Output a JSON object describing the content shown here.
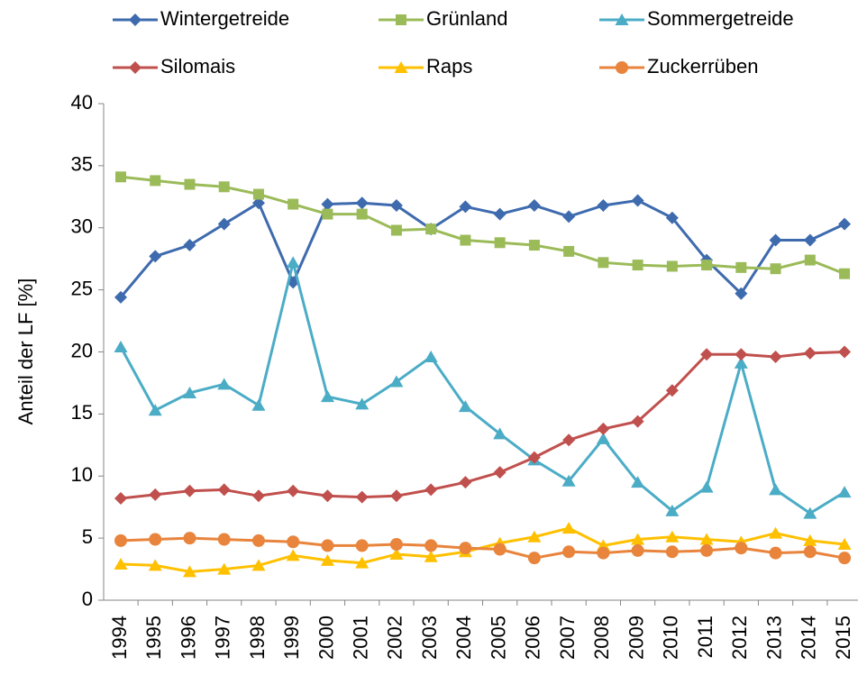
{
  "chart_data": {
    "type": "line",
    "y_label": "Anteil der LF [%]",
    "categories": [
      "1994",
      "1995",
      "1996",
      "1997",
      "1998",
      "1999",
      "2000",
      "2001",
      "2002",
      "2003",
      "2004",
      "2005",
      "2006",
      "2007",
      "2008",
      "2009",
      "2010",
      "2011",
      "2012",
      "2013",
      "2014",
      "2015"
    ],
    "series": [
      {
        "name": "Wintergetreide",
        "color": "#3e6aae",
        "marker": "diamond",
        "values": [
          24.4,
          27.7,
          28.6,
          30.3,
          32.0,
          25.6,
          31.9,
          32.0,
          31.8,
          29.9,
          31.7,
          31.1,
          31.8,
          30.9,
          31.8,
          32.2,
          30.8,
          27.4,
          24.7,
          29.0,
          29.0,
          30.3
        ]
      },
      {
        "name": "Grünland",
        "color": "#9bbb59",
        "marker": "square",
        "values": [
          34.1,
          33.8,
          33.5,
          33.3,
          32.7,
          31.9,
          31.1,
          31.1,
          29.8,
          29.9,
          29.0,
          28.8,
          28.6,
          28.1,
          27.2,
          27.0,
          26.9,
          27.0,
          26.8,
          26.7,
          27.4,
          26.3
        ]
      },
      {
        "name": "Sommergetreide",
        "color": "#4bacc6",
        "marker": "triangle",
        "values": [
          20.4,
          15.3,
          16.7,
          17.4,
          15.7,
          27.2,
          16.4,
          15.8,
          17.6,
          19.6,
          15.6,
          13.4,
          11.3,
          9.6,
          13.0,
          9.5,
          7.2,
          9.1,
          19.1,
          8.9,
          7.0,
          8.7
        ]
      },
      {
        "name": "Silomais",
        "color": "#c0504d",
        "marker": "diamond",
        "values": [
          8.2,
          8.5,
          8.8,
          8.9,
          8.4,
          8.8,
          8.4,
          8.3,
          8.4,
          8.9,
          9.5,
          10.3,
          11.5,
          12.9,
          13.8,
          14.4,
          16.9,
          19.8,
          19.8,
          19.6,
          19.9,
          20.0
        ]
      },
      {
        "name": "Raps",
        "color": "#ffc000",
        "marker": "triangle",
        "values": [
          2.9,
          2.8,
          2.3,
          2.5,
          2.8,
          3.6,
          3.2,
          3.0,
          3.7,
          3.5,
          3.9,
          4.6,
          5.1,
          5.8,
          4.4,
          4.9,
          5.1,
          4.9,
          4.7,
          5.4,
          4.8,
          4.5
        ]
      },
      {
        "name": "Zuckerrüben",
        "color": "#e8843c",
        "marker": "circle",
        "values": [
          4.8,
          4.9,
          5.0,
          4.9,
          4.8,
          4.7,
          4.4,
          4.4,
          4.5,
          4.4,
          4.2,
          4.1,
          3.4,
          3.9,
          3.8,
          4.0,
          3.9,
          4.0,
          4.2,
          3.8,
          3.9,
          3.4
        ]
      }
    ],
    "ylim": [
      0,
      40
    ],
    "yticks": [
      0,
      5,
      10,
      15,
      20,
      25,
      30,
      35,
      40
    ],
    "grid": false
  }
}
